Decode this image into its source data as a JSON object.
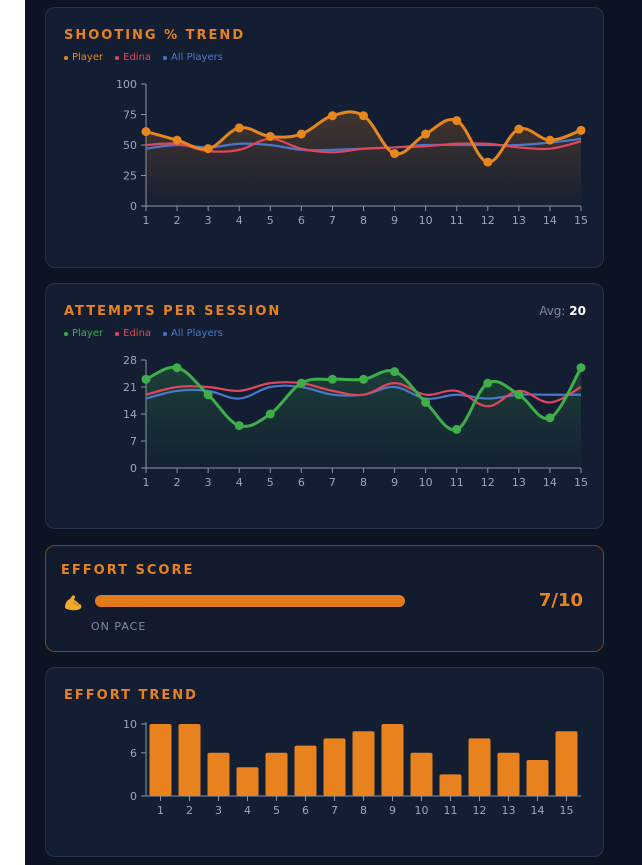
{
  "colors": {
    "accent": "#e8821f",
    "player_shooting": "#e8861e",
    "player_attempts": "#3fae4a",
    "edina": "#e0465a",
    "all_players": "#4a78c8",
    "bar": "#e8821f",
    "axis": "#8a95a8"
  },
  "shooting": {
    "title": "SHOOTING % TREND",
    "legend": [
      "Player",
      "Edina",
      "All Players"
    ]
  },
  "attempts": {
    "title": "ATTEMPTS PER SESSION",
    "legend": [
      "Player",
      "Edina",
      "All Players"
    ],
    "avg_label": "Avg:",
    "avg_value": "20"
  },
  "effort_score": {
    "title": "EFFORT SCORE",
    "icon": "flexed-biceps-icon",
    "score_text": "7/10",
    "progress_fraction": 0.7,
    "status": "ON PACE"
  },
  "effort_trend": {
    "title": "EFFORT TREND"
  },
  "chart_data": [
    {
      "type": "line",
      "title": "SHOOTING % TREND",
      "x": [
        1,
        2,
        3,
        4,
        5,
        6,
        7,
        8,
        9,
        10,
        11,
        12,
        13,
        14,
        15
      ],
      "ylim": [
        0,
        100
      ],
      "yticks": [
        0,
        25,
        50,
        75,
        100
      ],
      "series": [
        {
          "name": "Player",
          "values": [
            61,
            54,
            47,
            64,
            57,
            59,
            74,
            74,
            43,
            59,
            70,
            36,
            63,
            54,
            62
          ]
        },
        {
          "name": "Edina",
          "values": [
            50,
            51,
            45,
            46,
            55,
            47,
            44,
            47,
            48,
            49,
            51,
            51,
            48,
            47,
            53
          ]
        },
        {
          "name": "All Players",
          "values": [
            47,
            50,
            48,
            51,
            50,
            46,
            46,
            47,
            48,
            50,
            50,
            50,
            50,
            52,
            55
          ]
        }
      ]
    },
    {
      "type": "line",
      "title": "ATTEMPTS PER SESSION",
      "x": [
        1,
        2,
        3,
        4,
        5,
        6,
        7,
        8,
        9,
        10,
        11,
        12,
        13,
        14,
        15
      ],
      "ylim": [
        0,
        28
      ],
      "yticks": [
        0,
        7,
        14,
        21,
        28
      ],
      "series": [
        {
          "name": "Player",
          "values": [
            23,
            26,
            19,
            11,
            14,
            22,
            23,
            23,
            25,
            17,
            10,
            22,
            19,
            13,
            26
          ]
        },
        {
          "name": "Edina",
          "values": [
            19,
            21,
            21,
            20,
            22,
            22,
            20,
            19,
            22,
            19,
            20,
            16,
            20,
            17,
            21
          ]
        },
        {
          "name": "All Players",
          "values": [
            18,
            20,
            20,
            18,
            21,
            21,
            19,
            19,
            21,
            18,
            19,
            18,
            19,
            19,
            19
          ]
        }
      ]
    },
    {
      "type": "bar",
      "title": "EFFORT TREND",
      "categories": [
        "1",
        "2",
        "3",
        "4",
        "5",
        "6",
        "7",
        "8",
        "9",
        "10",
        "11",
        "12",
        "13",
        "14",
        "15"
      ],
      "values": [
        10,
        10,
        6,
        4,
        6,
        7,
        8,
        9,
        10,
        6,
        3,
        8,
        6,
        5,
        9
      ],
      "ylim": [
        0,
        10
      ],
      "yticks": [
        0,
        6,
        10
      ]
    }
  ]
}
